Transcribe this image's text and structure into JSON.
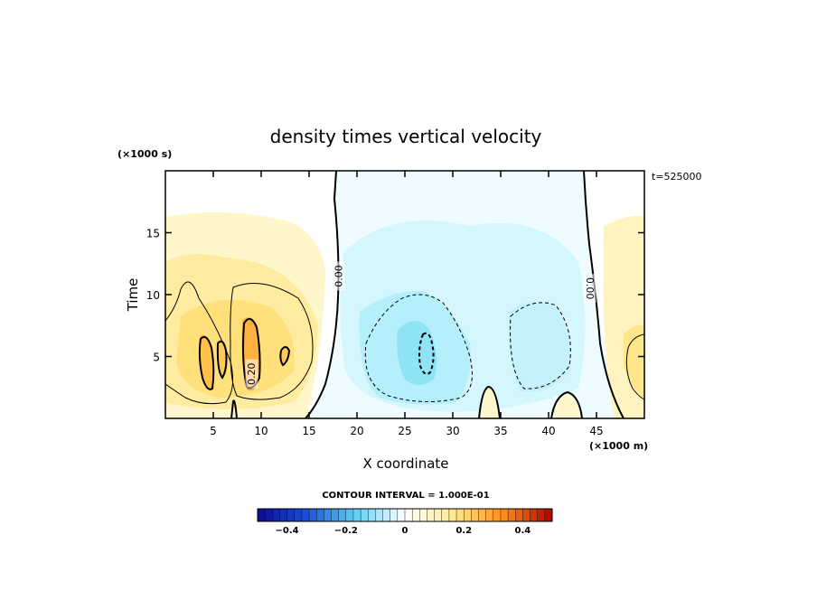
{
  "chart_data": {
    "type": "heatmap",
    "title": "density times vertical velocity",
    "xlabel": "X coordinate",
    "ylabel": "Time",
    "x_units": "(×1000 m)",
    "y_units": "(×1000 s)",
    "time_stamp": "t=525000",
    "xlim": [
      0,
      50
    ],
    "ylim": [
      0,
      20
    ],
    "x_ticks": [
      5,
      10,
      15,
      20,
      25,
      30,
      35,
      40,
      45
    ],
    "y_ticks": [
      5,
      10,
      15
    ],
    "contour_labels": [
      {
        "text": "0.00",
        "x": 18.1,
        "y": 11.5,
        "rotate": -90
      },
      {
        "text": "0.00",
        "x": 44.3,
        "y": 10.5,
        "rotate": 90
      },
      {
        "text": "0.20",
        "x": 9.0,
        "y": 3.6,
        "rotate": -90
      }
    ],
    "contour_interval": "CONTOUR INTERVAL = 1.000E-01",
    "colorbar": {
      "min": -0.5,
      "max": 0.5,
      "n_bins": 40,
      "tick_values": [
        -0.4,
        -0.2,
        0,
        0.2,
        0.4
      ],
      "tick_labels": [
        "−0.4",
        "−0.2",
        "0",
        "0.2",
        "0.4"
      ],
      "colors": [
        "#0a0c8c",
        "#1f4fd6",
        "#5fd0f5",
        "#ffffff",
        "#ffe98f",
        "#ff8f1a",
        "#b00000"
      ]
    },
    "grid": false
  }
}
